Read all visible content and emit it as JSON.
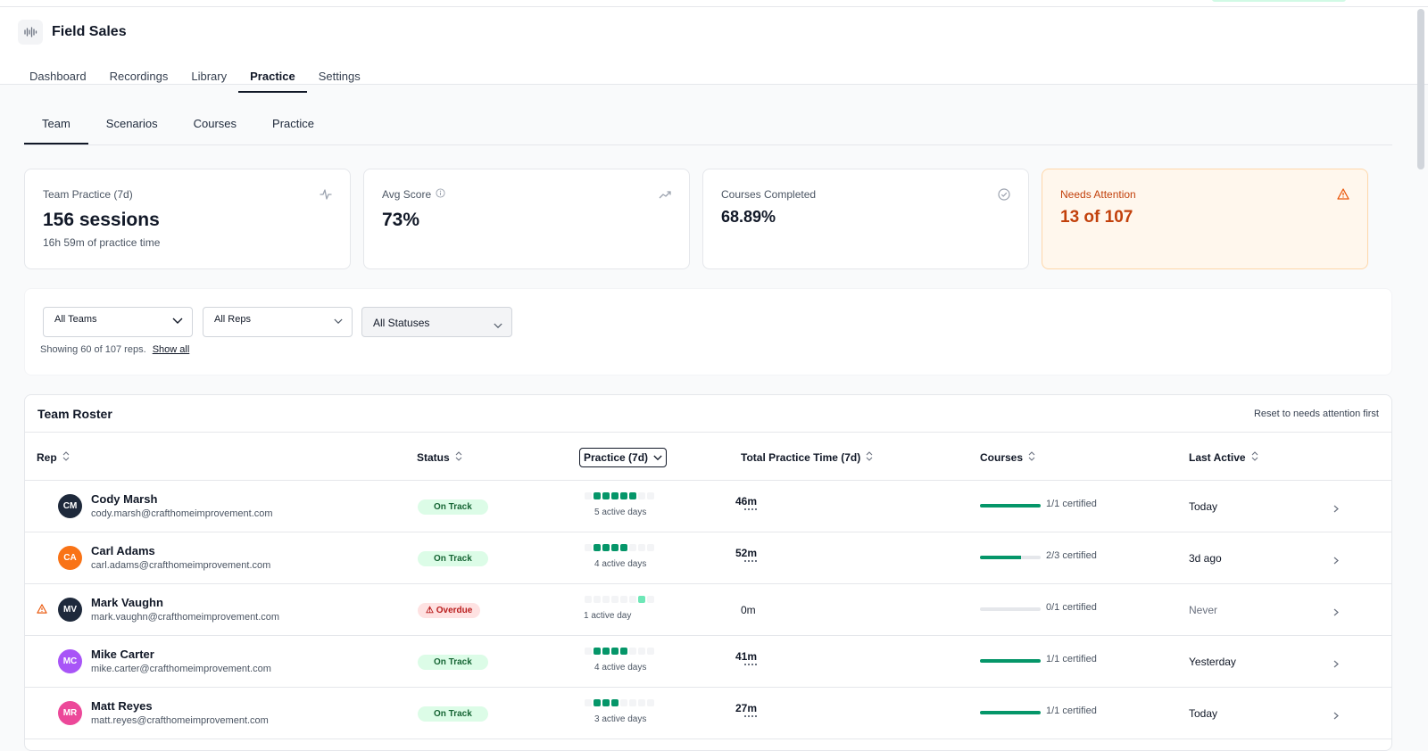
{
  "app": {
    "title": "Field Sales",
    "icon": "audio-wave-icon"
  },
  "main_nav": [
    "Dashboard",
    "Recordings",
    "Library",
    "Practice",
    "Settings"
  ],
  "main_nav_active": 3,
  "sub_nav": [
    "Team",
    "Scenarios",
    "Courses",
    "Practice"
  ],
  "sub_nav_active": 0,
  "cards": {
    "practice": {
      "label": "Team Practice (7d)",
      "value": "156 sessions",
      "sub": "16h 59m of practice time",
      "icon": "activity-icon"
    },
    "score": {
      "label": "Avg Score",
      "value": "73%",
      "icon": "trending-up-icon"
    },
    "courses": {
      "label": "Courses Completed",
      "value": "68.89%",
      "icon": "check-circle-icon"
    },
    "attention": {
      "label": "Needs Attention",
      "value": "13 of 107",
      "icon": "alert-triangle-icon"
    }
  },
  "filters": {
    "teams": "All Teams",
    "reps": "All Reps",
    "statuses": "All Statuses",
    "showing": "Showing 60 of 107 reps.",
    "show_all": "Show all"
  },
  "roster": {
    "title": "Team Roster",
    "reset": "Reset to needs attention first",
    "columns": {
      "rep": "Rep",
      "status": "Status",
      "practice": "Practice (7d)",
      "time": "Total Practice Time (7d)",
      "courses": "Courses",
      "last": "Last Active"
    },
    "rows": [
      {
        "initials": "CM",
        "color": "#1e293b",
        "name": "Cody Marsh",
        "email": "cody.marsh@crafthomeimprovement.com",
        "status": "On Track",
        "status_type": "ok",
        "dots": [
          0,
          1,
          1,
          1,
          1,
          1,
          0,
          0
        ],
        "days": "5 active days",
        "time": "46m",
        "progress": 1.0,
        "cert": "1/1 certified",
        "last": "Today",
        "flag": false
      },
      {
        "initials": "CA",
        "color": "#f97316",
        "name": "Carl Adams",
        "email": "carl.adams@crafthomeimprovement.com",
        "status": "On Track",
        "status_type": "ok",
        "dots": [
          0,
          1,
          1,
          1,
          1,
          0,
          0,
          0
        ],
        "days": "4 active days",
        "time": "52m",
        "progress": 0.67,
        "cert": "2/3 certified",
        "last": "3d ago",
        "flag": false
      },
      {
        "initials": "MV",
        "color": "#1e293b",
        "name": "Mark Vaughn",
        "email": "mark.vaughn@crafthomeimprovement.com",
        "status": "Overdue",
        "status_type": "bad",
        "dots": [
          0,
          0,
          0,
          0,
          0,
          0,
          2,
          0
        ],
        "days": "1 active day",
        "time": "0m",
        "progress": 0,
        "cert": "0/1 certified",
        "last": "Never",
        "flag": true
      },
      {
        "initials": "MC",
        "color": "#a855f7",
        "name": "Mike Carter",
        "email": "mike.carter@crafthomeimprovement.com",
        "status": "On Track",
        "status_type": "ok",
        "dots": [
          0,
          1,
          1,
          1,
          1,
          0,
          0,
          0
        ],
        "days": "4 active days",
        "time": "41m",
        "progress": 1.0,
        "cert": "1/1 certified",
        "last": "Yesterday",
        "flag": false
      },
      {
        "initials": "MR",
        "color": "#ec4899",
        "name": "Matt Reyes",
        "email": "matt.reyes@crafthomeimprovement.com",
        "status": "On Track",
        "status_type": "ok",
        "dots": [
          0,
          1,
          1,
          1,
          0,
          0,
          0,
          0
        ],
        "days": "3 active days",
        "time": "27m",
        "progress": 1.0,
        "cert": "1/1 certified",
        "last": "Today",
        "flag": false
      }
    ]
  }
}
